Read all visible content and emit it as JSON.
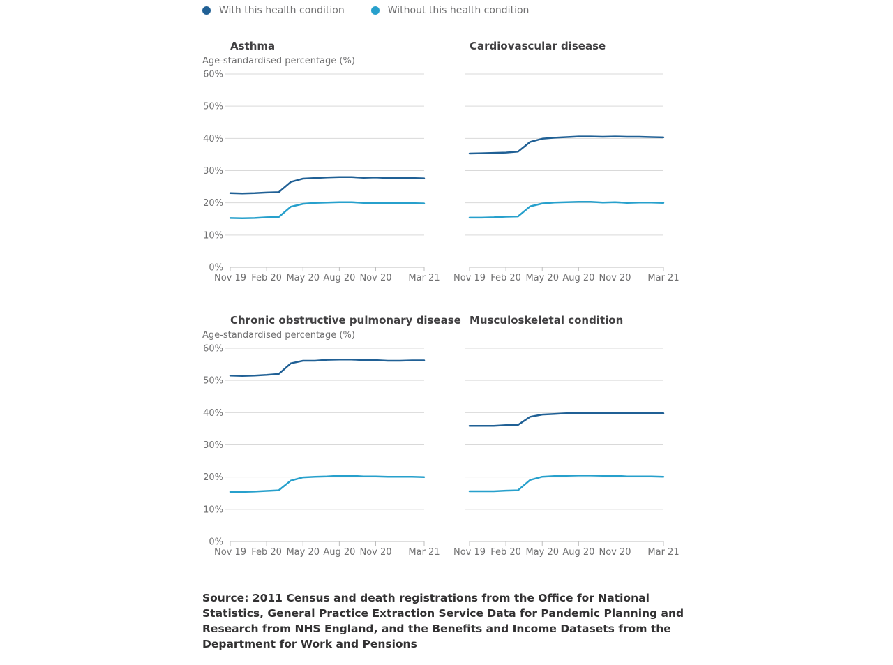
{
  "legend": [
    {
      "label": "With this health condition",
      "color": "#206095"
    },
    {
      "label": "Without this health condition",
      "color": "#27a0cc"
    }
  ],
  "colors": {
    "grid": "#d9d9d9",
    "axis": "#bebebe",
    "tick_text": "#707071",
    "title": "#414042"
  },
  "chart_data": [
    {
      "type": "line",
      "title": "Asthma",
      "ylabel": "Age-standardised percentage (%)",
      "ylim": [
        0,
        60
      ],
      "yticks": [
        "0%",
        "10%",
        "20%",
        "30%",
        "40%",
        "50%",
        "60%"
      ],
      "xticks": [
        "Nov 19",
        "Feb 20",
        "May 20",
        "Aug 20",
        "Nov 20",
        "Mar 21"
      ],
      "xrange": [
        "2019-11",
        "2021-03"
      ],
      "x": [
        "2019-11",
        "2019-12",
        "2020-01",
        "2020-02",
        "2020-03",
        "2020-04",
        "2020-05",
        "2020-06",
        "2020-07",
        "2020-08",
        "2020-09",
        "2020-10",
        "2020-11",
        "2020-12",
        "2021-01",
        "2021-02",
        "2021-03"
      ],
      "series": [
        {
          "name": "With this health condition",
          "values": [
            23.0,
            22.9,
            23.0,
            23.2,
            23.3,
            26.5,
            27.5,
            27.7,
            27.9,
            28.0,
            28.0,
            27.8,
            27.9,
            27.7,
            27.7,
            27.7,
            27.6
          ]
        },
        {
          "name": "Without this health condition",
          "values": [
            15.3,
            15.2,
            15.3,
            15.5,
            15.6,
            18.8,
            19.7,
            20.0,
            20.1,
            20.2,
            20.2,
            20.0,
            20.0,
            19.9,
            19.9,
            19.9,
            19.8
          ]
        }
      ]
    },
    {
      "type": "line",
      "title": "Cardiovascular disease",
      "ylabel": "",
      "ylim": [
        0,
        60
      ],
      "xticks": [
        "Nov 19",
        "Feb 20",
        "May 20",
        "Aug 20",
        "Nov 20",
        "Mar 21"
      ],
      "xrange": [
        "2019-11",
        "2021-03"
      ],
      "x": [
        "2019-11",
        "2019-12",
        "2020-01",
        "2020-02",
        "2020-03",
        "2020-04",
        "2020-05",
        "2020-06",
        "2020-07",
        "2020-08",
        "2020-09",
        "2020-10",
        "2020-11",
        "2020-12",
        "2021-01",
        "2021-02",
        "2021-03"
      ],
      "series": [
        {
          "name": "With this health condition",
          "values": [
            35.3,
            35.4,
            35.5,
            35.6,
            35.9,
            38.9,
            39.9,
            40.2,
            40.4,
            40.6,
            40.6,
            40.5,
            40.6,
            40.5,
            40.5,
            40.4,
            40.3
          ]
        },
        {
          "name": "Without this health condition",
          "values": [
            15.4,
            15.4,
            15.5,
            15.7,
            15.8,
            18.9,
            19.8,
            20.1,
            20.2,
            20.3,
            20.3,
            20.1,
            20.2,
            20.0,
            20.1,
            20.1,
            20.0
          ]
        }
      ]
    },
    {
      "type": "line",
      "title": "Chronic obstructive pulmonary disease",
      "ylabel": "Age-standardised percentage (%)",
      "ylim": [
        0,
        60
      ],
      "yticks": [
        "0%",
        "10%",
        "20%",
        "30%",
        "40%",
        "50%",
        "60%"
      ],
      "xticks": [
        "Nov 19",
        "Feb 20",
        "May 20",
        "Aug 20",
        "Nov 20",
        "Mar 21"
      ],
      "xrange": [
        "2019-11",
        "2021-03"
      ],
      "x": [
        "2019-11",
        "2019-12",
        "2020-01",
        "2020-02",
        "2020-03",
        "2020-04",
        "2020-05",
        "2020-06",
        "2020-07",
        "2020-08",
        "2020-09",
        "2020-10",
        "2020-11",
        "2020-12",
        "2021-01",
        "2021-02",
        "2021-03"
      ],
      "series": [
        {
          "name": "With this health condition",
          "values": [
            51.5,
            51.4,
            51.5,
            51.7,
            52.0,
            55.3,
            56.1,
            56.1,
            56.4,
            56.5,
            56.5,
            56.3,
            56.3,
            56.1,
            56.1,
            56.2,
            56.2
          ]
        },
        {
          "name": "Without this health condition",
          "values": [
            15.4,
            15.4,
            15.5,
            15.7,
            15.9,
            18.9,
            19.9,
            20.1,
            20.2,
            20.4,
            20.4,
            20.2,
            20.2,
            20.1,
            20.1,
            20.1,
            20.0
          ]
        }
      ]
    },
    {
      "type": "line",
      "title": "Musculoskeletal condition",
      "ylabel": "",
      "ylim": [
        0,
        60
      ],
      "xticks": [
        "Nov 19",
        "Feb 20",
        "May 20",
        "Aug 20",
        "Nov 20",
        "Mar 21"
      ],
      "xrange": [
        "2019-11",
        "2021-03"
      ],
      "x": [
        "2019-11",
        "2019-12",
        "2020-01",
        "2020-02",
        "2020-03",
        "2020-04",
        "2020-05",
        "2020-06",
        "2020-07",
        "2020-08",
        "2020-09",
        "2020-10",
        "2020-11",
        "2020-12",
        "2021-01",
        "2021-02",
        "2021-03"
      ],
      "series": [
        {
          "name": "With this health condition",
          "values": [
            35.9,
            35.9,
            35.9,
            36.1,
            36.2,
            38.7,
            39.4,
            39.6,
            39.8,
            39.9,
            39.9,
            39.8,
            39.9,
            39.8,
            39.8,
            39.9,
            39.8
          ]
        },
        {
          "name": "Without this health condition",
          "values": [
            15.6,
            15.6,
            15.6,
            15.8,
            15.9,
            19.1,
            20.1,
            20.3,
            20.4,
            20.5,
            20.5,
            20.4,
            20.4,
            20.2,
            20.2,
            20.2,
            20.1
          ]
        }
      ]
    }
  ],
  "source": "Source: 2011 Census and death registrations from the Office for National Statistics, General Practice Extraction Service Data for Pandemic Planning and Research from NHS England, and the Benefits and Income Datasets from the Department for Work and Pensions"
}
